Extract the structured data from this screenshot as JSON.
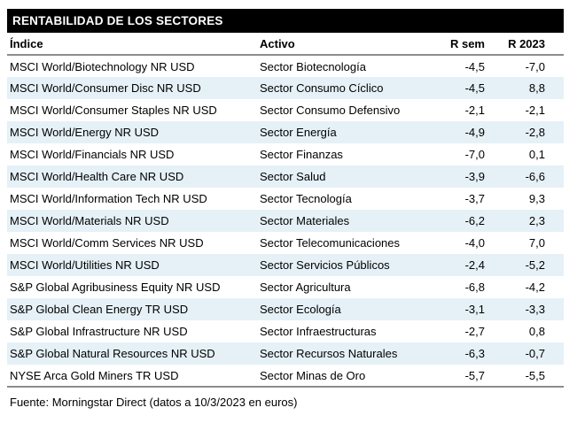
{
  "title": "RENTABILIDAD DE LOS SECTORES",
  "table": {
    "columns": {
      "index": "Índice",
      "activo": "Activo",
      "r_sem": "R sem",
      "r_2023": "R 2023"
    },
    "rows": [
      [
        "MSCI World/Biotechnology NR USD",
        "Sector Biotecnología",
        "-4,5",
        "-7,0"
      ],
      [
        "MSCI World/Consumer Disc NR USD",
        "Sector Consumo Cíclico",
        "-4,5",
        "8,8"
      ],
      [
        "MSCI World/Consumer Staples NR USD",
        "Sector Consumo Defensivo",
        "-2,1",
        "-2,1"
      ],
      [
        "MSCI World/Energy NR USD",
        "Sector Energía",
        "-4,9",
        "-2,8"
      ],
      [
        "MSCI World/Financials NR USD",
        "Sector Finanzas",
        "-7,0",
        "0,1"
      ],
      [
        "MSCI World/Health Care NR USD",
        "Sector Salud",
        "-3,9",
        "-6,6"
      ],
      [
        "MSCI World/Information Tech NR USD",
        "Sector Tecnología",
        "-3,7",
        "9,3"
      ],
      [
        "MSCI World/Materials NR USD",
        "Sector Materiales",
        "-6,2",
        "2,3"
      ],
      [
        "MSCI World/Comm Services NR USD",
        "Sector Telecomunicaciones",
        "-4,0",
        "7,0"
      ],
      [
        "MSCI World/Utilities NR USD",
        "Sector Servicios Públicos",
        "-2,4",
        "-5,2"
      ],
      [
        "S&P Global Agribusiness Equity NR USD",
        "Sector Agricultura",
        "-6,8",
        "-4,2"
      ],
      [
        "S&P Global Clean Energy TR USD",
        "Sector Ecología",
        "-3,1",
        "-3,3"
      ],
      [
        "S&P Global Infrastructure NR USD",
        "Sector Infraestructuras",
        "-2,7",
        "0,8"
      ],
      [
        "S&P Global Natural Resources NR USD",
        "Sector Recursos Naturales",
        "-6,3",
        "-0,7"
      ],
      [
        "NYSE Arca Gold Miners TR USD",
        "Sector Minas de Oro",
        "-5,7",
        "-5,5"
      ]
    ]
  },
  "footer": "Fuente: Morningstar Direct (datos a 10/3/2023 en euros)",
  "colors": {
    "title_bg": "#000000",
    "title_text": "#ffffff",
    "row_alt": "#e5f1f7",
    "rule": "#8c8c8c",
    "text": "#000000"
  }
}
